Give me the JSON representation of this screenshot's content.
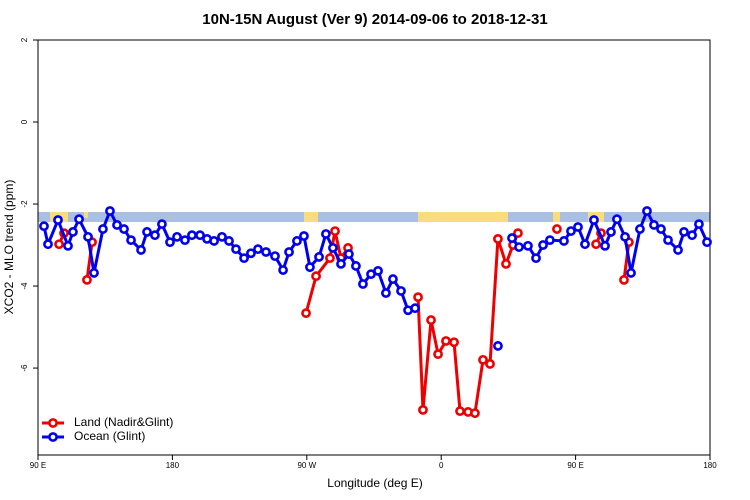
{
  "chart_data": {
    "type": "line",
    "title": "10N-15N August (Ver 9)   2014-09-06 to 2018-12-31",
    "xlabel": "Longitude (deg E)",
    "ylabel": "XCO2 - MLO trend (ppm)",
    "xlim": [
      90,
      540
    ],
    "ylim": [
      -8.12,
      2
    ],
    "xticks": [
      {
        "value": 90,
        "label": "90 E"
      },
      180,
      {
        "value": 270,
        "label": "90 W"
      },
      {
        "value": 360,
        "label": "0"
      },
      {
        "value": 450,
        "label": "90 E"
      },
      {
        "value": 540,
        "label": "180"
      }
    ],
    "yticks": [
      2,
      0,
      -2,
      -4,
      -6
    ],
    "legend": "bottom-left",
    "series": [
      {
        "name": "Land (Nadir&Glint)",
        "color": "#ee0000",
        "x": [
          104.1,
          107.4,
          115,
          122.8,
          126.2,
          200,
          269.5,
          276.2,
          285.5,
          288.9,
          292.9,
          297.6,
          320,
          344.5,
          347.8,
          353.2,
          357.9,
          363.2,
          368.6,
          372.6,
          378.0,
          382.6,
          388.0,
          392.7,
          398.0,
          403.4,
          408.1,
          411.4,
          425,
          437.5,
          450,
          463.7,
          467.0,
          475,
          482.4,
          485.7
        ],
        "values": [
          -2.98,
          -2.71,
          null,
          -3.85,
          -2.93,
          null,
          -4.66,
          -3.76,
          -3.32,
          -2.66,
          -3.32,
          -3.07,
          null,
          -4.27,
          -7.02,
          -4.83,
          -5.66,
          -5.34,
          -5.37,
          -7.05,
          -7.07,
          -7.1,
          -5.8,
          -5.9,
          -2.85,
          -3.46,
          -3.0,
          -2.71,
          null,
          -2.61,
          null,
          -2.98,
          -2.71,
          null,
          -3.85,
          -2.93
        ]
      },
      {
        "name": "Ocean (Glint)",
        "color": "#0000ee",
        "x": [
          94.0,
          96.7,
          103.4,
          110.1,
          113.4,
          117.5,
          123.5,
          127.5,
          133.5,
          138.2,
          142.9,
          147.6,
          152.3,
          159.0,
          163.0,
          168.3,
          173.0,
          178.4,
          183.1,
          188.4,
          193.1,
          198.5,
          203.2,
          207.9,
          213.2,
          217.9,
          222.6,
          228.0,
          232.6,
          237.3,
          242.7,
          248.7,
          254.1,
          258.1,
          263.4,
          268.1,
          272.1,
          278.2,
          282.8,
          287.5,
          292.9,
          298.2,
          302.9,
          307.6,
          313.0,
          317.7,
          323.0,
          327.7,
          333.1,
          337.8,
          342.5,
          370,
          398.0,
          403,
          407.4,
          412.1,
          418.1,
          423.5,
          428.2,
          432.8,
          442.2,
          446.9,
          451.6,
          456.3,
          462.3,
          469.7,
          473.7,
          477.7,
          483.1,
          487.1,
          493.1,
          497.8,
          502.5,
          507.2,
          511.9,
          518.6,
          522.6,
          528.0,
          532.6,
          538.0
        ],
        "values": [
          -2.54,
          -2.98,
          -2.39,
          -3.02,
          -2.68,
          -2.37,
          -2.8,
          -3.68,
          -2.61,
          -2.17,
          -2.51,
          -2.61,
          -2.88,
          -3.12,
          -2.68,
          -2.76,
          -2.49,
          -2.93,
          -2.8,
          -2.88,
          -2.76,
          -2.76,
          -2.85,
          -2.9,
          -2.8,
          -2.9,
          -3.1,
          -3.32,
          -3.2,
          -3.1,
          -3.17,
          -3.27,
          -3.61,
          -3.17,
          -2.9,
          -2.78,
          -3.54,
          -3.29,
          -2.73,
          -3.07,
          -3.46,
          -3.22,
          -3.51,
          -3.95,
          -3.71,
          -3.63,
          -4.17,
          -3.83,
          -4.12,
          -4.59,
          -4.54,
          null,
          -5.46,
          null,
          -2.83,
          -3.05,
          -3.02,
          -3.32,
          -3.0,
          -2.88,
          -2.9,
          -2.66,
          -2.56,
          -2.98,
          -2.39,
          -3.02,
          -2.68,
          -2.37,
          -2.8,
          -3.68,
          -2.61,
          -2.17,
          -2.51,
          -2.61,
          -2.88,
          -3.12,
          -2.68,
          -2.76,
          -2.49,
          -2.93
        ]
      }
    ]
  }
}
